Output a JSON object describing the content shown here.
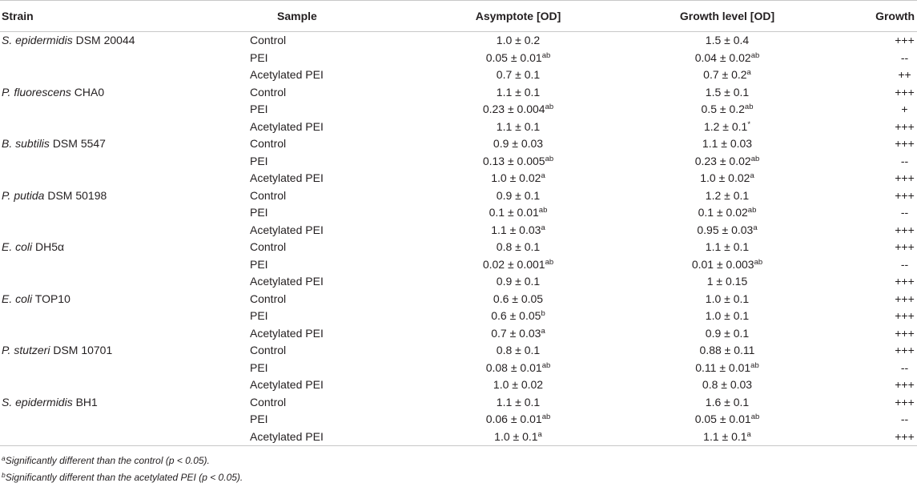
{
  "table": {
    "headers": {
      "strain": "Strain",
      "sample": "Sample",
      "asymptote": "Asymptote [OD]",
      "growth_level": "Growth level [OD]",
      "growth_class": "Growth class"
    },
    "rows": [
      {
        "species": "S. epidermidis",
        "strain_id": "DSM 20044",
        "sample": "Control",
        "asym": "1.0 ± 0.2",
        "asym_sup": "",
        "growth": "1.5 ± 0.4",
        "growth_sup": "",
        "class": "+++"
      },
      {
        "species": "",
        "strain_id": "",
        "sample": "PEI",
        "asym": "0.05 ± 0.01",
        "asym_sup": "ab",
        "growth": "0.04 ± 0.02",
        "growth_sup": "ab",
        "class": "--"
      },
      {
        "species": "",
        "strain_id": "",
        "sample": "Acetylated PEI",
        "asym": "0.7 ± 0.1",
        "asym_sup": "",
        "growth": "0.7 ± 0.2",
        "growth_sup": "a",
        "class": "++"
      },
      {
        "species": "P. fluorescens",
        "strain_id": "CHA0",
        "sample": "Control",
        "asym": "1.1 ± 0.1",
        "asym_sup": "",
        "growth": "1.5 ± 0.1",
        "growth_sup": "",
        "class": "+++"
      },
      {
        "species": "",
        "strain_id": "",
        "sample": "PEI",
        "asym": "0.23 ± 0.004",
        "asym_sup": "ab",
        "growth": "0.5 ± 0.2",
        "growth_sup": "ab",
        "class": "+"
      },
      {
        "species": "",
        "strain_id": "",
        "sample": "Acetylated PEI",
        "asym": "1.1 ± 0.1",
        "asym_sup": "",
        "growth": "1.2 ± 0.1",
        "growth_sup": "*",
        "class": "+++"
      },
      {
        "species": "B. subtilis",
        "strain_id": "DSM 5547",
        "sample": "Control",
        "asym": "0.9 ± 0.03",
        "asym_sup": "",
        "growth": "1.1 ± 0.03",
        "growth_sup": "",
        "class": "+++"
      },
      {
        "species": "",
        "strain_id": "",
        "sample": "PEI",
        "asym": "0.13 ± 0.005",
        "asym_sup": "ab",
        "growth": "0.23 ± 0.02",
        "growth_sup": "ab",
        "class": "--"
      },
      {
        "species": "",
        "strain_id": "",
        "sample": "Acetylated PEI",
        "asym": "1.0 ± 0.02",
        "asym_sup": "a",
        "growth": "1.0 ± 0.02",
        "growth_sup": "a",
        "class": "+++"
      },
      {
        "species": "P. putida",
        "strain_id": "DSM 50198",
        "sample": "Control",
        "asym": "0.9 ± 0.1",
        "asym_sup": "",
        "growth": "1.2 ± 0.1",
        "growth_sup": "",
        "class": "+++"
      },
      {
        "species": "",
        "strain_id": "",
        "sample": "PEI",
        "asym": "0.1 ± 0.01",
        "asym_sup": "ab",
        "growth": "0.1 ± 0.02",
        "growth_sup": "ab",
        "class": "--"
      },
      {
        "species": "",
        "strain_id": "",
        "sample": "Acetylated PEI",
        "asym": "1.1 ± 0.03",
        "asym_sup": "a",
        "growth": "0.95 ± 0.03",
        "growth_sup": "a",
        "class": "+++"
      },
      {
        "species": "E. coli",
        "strain_id": "DH5α",
        "sample": "Control",
        "asym": "0.8 ± 0.1",
        "asym_sup": "",
        "growth": "1.1 ± 0.1",
        "growth_sup": "",
        "class": "+++"
      },
      {
        "species": "",
        "strain_id": "",
        "sample": "PEI",
        "asym": "0.02 ± 0.001",
        "asym_sup": "ab",
        "growth": "0.01 ± 0.003",
        "growth_sup": "ab",
        "class": "--"
      },
      {
        "species": "",
        "strain_id": "",
        "sample": "Acetylated PEI",
        "asym": "0.9 ± 0.1",
        "asym_sup": "",
        "growth": "1 ± 0.15",
        "growth_sup": "",
        "class": "+++"
      },
      {
        "species": "E. coli",
        "strain_id": "TOP10",
        "sample": "Control",
        "asym": "0.6 ± 0.05",
        "asym_sup": "",
        "growth": "1.0 ± 0.1",
        "growth_sup": "",
        "class": "+++"
      },
      {
        "species": "",
        "strain_id": "",
        "sample": "PEI",
        "asym": "0.6 ± 0.05",
        "asym_sup": "b",
        "growth": "1.0 ± 0.1",
        "growth_sup": "",
        "class": "+++"
      },
      {
        "species": "",
        "strain_id": "",
        "sample": "Acetylated PEI",
        "asym": "0.7 ± 0.03",
        "asym_sup": "a",
        "growth": "0.9 ± 0.1",
        "growth_sup": "",
        "class": "+++"
      },
      {
        "species": "P. stutzeri",
        "strain_id": "DSM 10701",
        "sample": "Control",
        "asym": "0.8 ± 0.1",
        "asym_sup": "",
        "growth": "0.88 ± 0.11",
        "growth_sup": "",
        "class": "+++"
      },
      {
        "species": "",
        "strain_id": "",
        "sample": "PEI",
        "asym": "0.08 ± 0.01",
        "asym_sup": "ab",
        "growth": "0.11 ± 0.01",
        "growth_sup": "ab",
        "class": "--"
      },
      {
        "species": "",
        "strain_id": "",
        "sample": "Acetylated PEI",
        "asym": "1.0 ± 0.02",
        "asym_sup": "",
        "growth": "0.8 ± 0.03",
        "growth_sup": "",
        "class": "+++"
      },
      {
        "species": "S. epidermidis",
        "strain_id": "BH1",
        "sample": "Control",
        "asym": "1.1 ± 0.1",
        "asym_sup": "",
        "growth": "1.6 ± 0.1",
        "growth_sup": "",
        "class": "+++"
      },
      {
        "species": "",
        "strain_id": "",
        "sample": "PEI",
        "asym": "0.06 ± 0.01",
        "asym_sup": "ab",
        "growth": "0.05 ± 0.01",
        "growth_sup": "ab",
        "class": "--"
      },
      {
        "species": "",
        "strain_id": "",
        "sample": "Acetylated PEI",
        "asym": "1.0 ± 0.1",
        "asym_sup": "a",
        "growth": "1.1 ± 0.1",
        "growth_sup": "a",
        "class": "+++"
      }
    ]
  },
  "footnotes": [
    {
      "mark": "a",
      "text": "Significantly different than the control (p < 0.05)."
    },
    {
      "mark": "b",
      "text": "Significantly different than the acetylated PEI (p < 0.05)."
    }
  ]
}
